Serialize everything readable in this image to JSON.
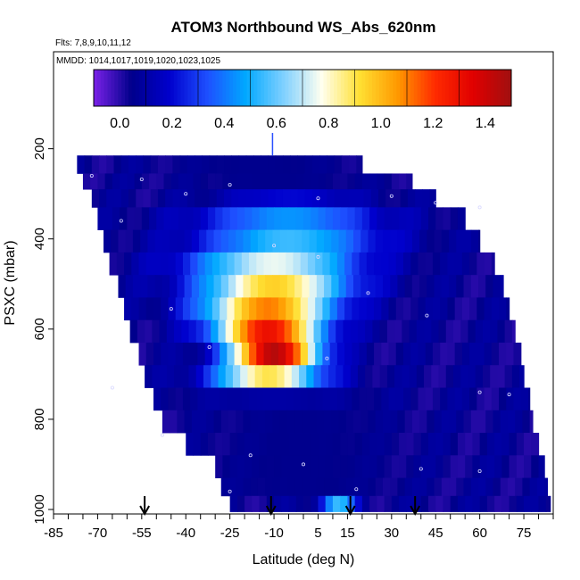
{
  "chart_data": {
    "type": "heatmap",
    "title": "ATOM3 Northbound WS_Abs_620nm",
    "flights_note": "Flts: 7,8,9,10,11,12",
    "dates_note": "MMDD: 1014,1017,1019,1020,1023,1025",
    "xlabel": "Latitude (deg N)",
    "ylabel": "PSXC (mbar)",
    "xlim": [
      -85,
      85
    ],
    "ylim": [
      1010,
      -15
    ],
    "x_ticks": [
      -85,
      -70,
      -55,
      -40,
      -25,
      -10,
      5,
      15,
      30,
      45,
      60,
      75
    ],
    "x_tick_labels": [
      "-85",
      "-70",
      "-55",
      "-40",
      "-25",
      "-10",
      "5",
      "15",
      "30",
      "45",
      "60",
      "75"
    ],
    "y_ticks": [
      200,
      400,
      600,
      800,
      1000
    ],
    "y_tick_labels": [
      "200",
      "400",
      "600",
      "800",
      "1000"
    ],
    "colorbar": {
      "range": [
        -0.1,
        1.5
      ],
      "ticks": [
        0.0,
        0.2,
        0.4,
        0.6,
        0.8,
        1.0,
        1.2,
        1.4
      ],
      "tick_labels": [
        "0.0",
        "0.2",
        "0.4",
        "0.6",
        "0.8",
        "1.0",
        "1.2",
        "1.4"
      ],
      "colors": [
        "#7b22e8",
        "#00008b",
        "#0000cd",
        "#1e50ff",
        "#00a8ff",
        "#7fd0ff",
        "#fffff0",
        "#ffe033",
        "#ff9900",
        "#ff2a00",
        "#e00000",
        "#a01010"
      ]
    },
    "arrow_latitudes": [
      -54,
      -11,
      16,
      38
    ],
    "layers": [
      {
        "p0": 215,
        "p1": 255,
        "lat0": -77,
        "lat1": 20,
        "peak": 0.05,
        "center": -15,
        "width": 30
      },
      {
        "p0": 255,
        "p1": 290,
        "lat0": -75,
        "lat1": 37,
        "peak": 0.05,
        "center": -10,
        "width": 30
      },
      {
        "p0": 290,
        "p1": 330,
        "lat0": -72,
        "lat1": 45,
        "peak": 0.2,
        "center": -5,
        "width": 25
      },
      {
        "p0": 330,
        "p1": 380,
        "lat0": -70,
        "lat1": 55,
        "peak": 0.45,
        "center": -5,
        "width": 30
      },
      {
        "p0": 380,
        "p1": 430,
        "lat0": -68,
        "lat1": 60,
        "peak": 0.55,
        "center": -5,
        "width": 30
      },
      {
        "p0": 430,
        "p1": 480,
        "lat0": -66,
        "lat1": 65,
        "peak": 0.75,
        "center": -10,
        "width": 28
      },
      {
        "p0": 480,
        "p1": 530,
        "lat0": -63,
        "lat1": 68,
        "peak": 0.95,
        "center": -10,
        "width": 25
      },
      {
        "p0": 530,
        "p1": 580,
        "lat0": -61,
        "lat1": 70,
        "peak": 1.1,
        "center": -12,
        "width": 22
      },
      {
        "p0": 580,
        "p1": 630,
        "lat0": -59,
        "lat1": 72,
        "peak": 1.3,
        "center": -12,
        "width": 18
      },
      {
        "p0": 630,
        "p1": 680,
        "lat0": -56,
        "lat1": 74,
        "peak": 1.45,
        "center": -10,
        "width": 15
      },
      {
        "p0": 680,
        "p1": 730,
        "lat0": -54,
        "lat1": 75,
        "peak": 0.9,
        "center": -12,
        "width": 18
      },
      {
        "p0": 730,
        "p1": 780,
        "lat0": -51,
        "lat1": 77,
        "peak": 0.1,
        "center": -10,
        "width": 30
      },
      {
        "p0": 780,
        "p1": 830,
        "lat0": -48,
        "lat1": 78,
        "peak": 0.05,
        "center": 0,
        "width": 30
      },
      {
        "p0": 830,
        "p1": 880,
        "lat0": -40,
        "lat1": 80,
        "peak": 0.05,
        "center": 0,
        "width": 30
      },
      {
        "p0": 880,
        "p1": 930,
        "lat0": -30,
        "lat1": 82,
        "peak": 0.05,
        "center": 0,
        "width": 30
      },
      {
        "p0": 930,
        "p1": 970,
        "lat0": -28,
        "lat1": 83,
        "peak": 0.05,
        "center": 0,
        "width": 30
      },
      {
        "p0": 970,
        "p1": 1005,
        "lat0": -25,
        "lat1": 84,
        "peak": 0.55,
        "center": 12,
        "width": 6
      }
    ]
  }
}
